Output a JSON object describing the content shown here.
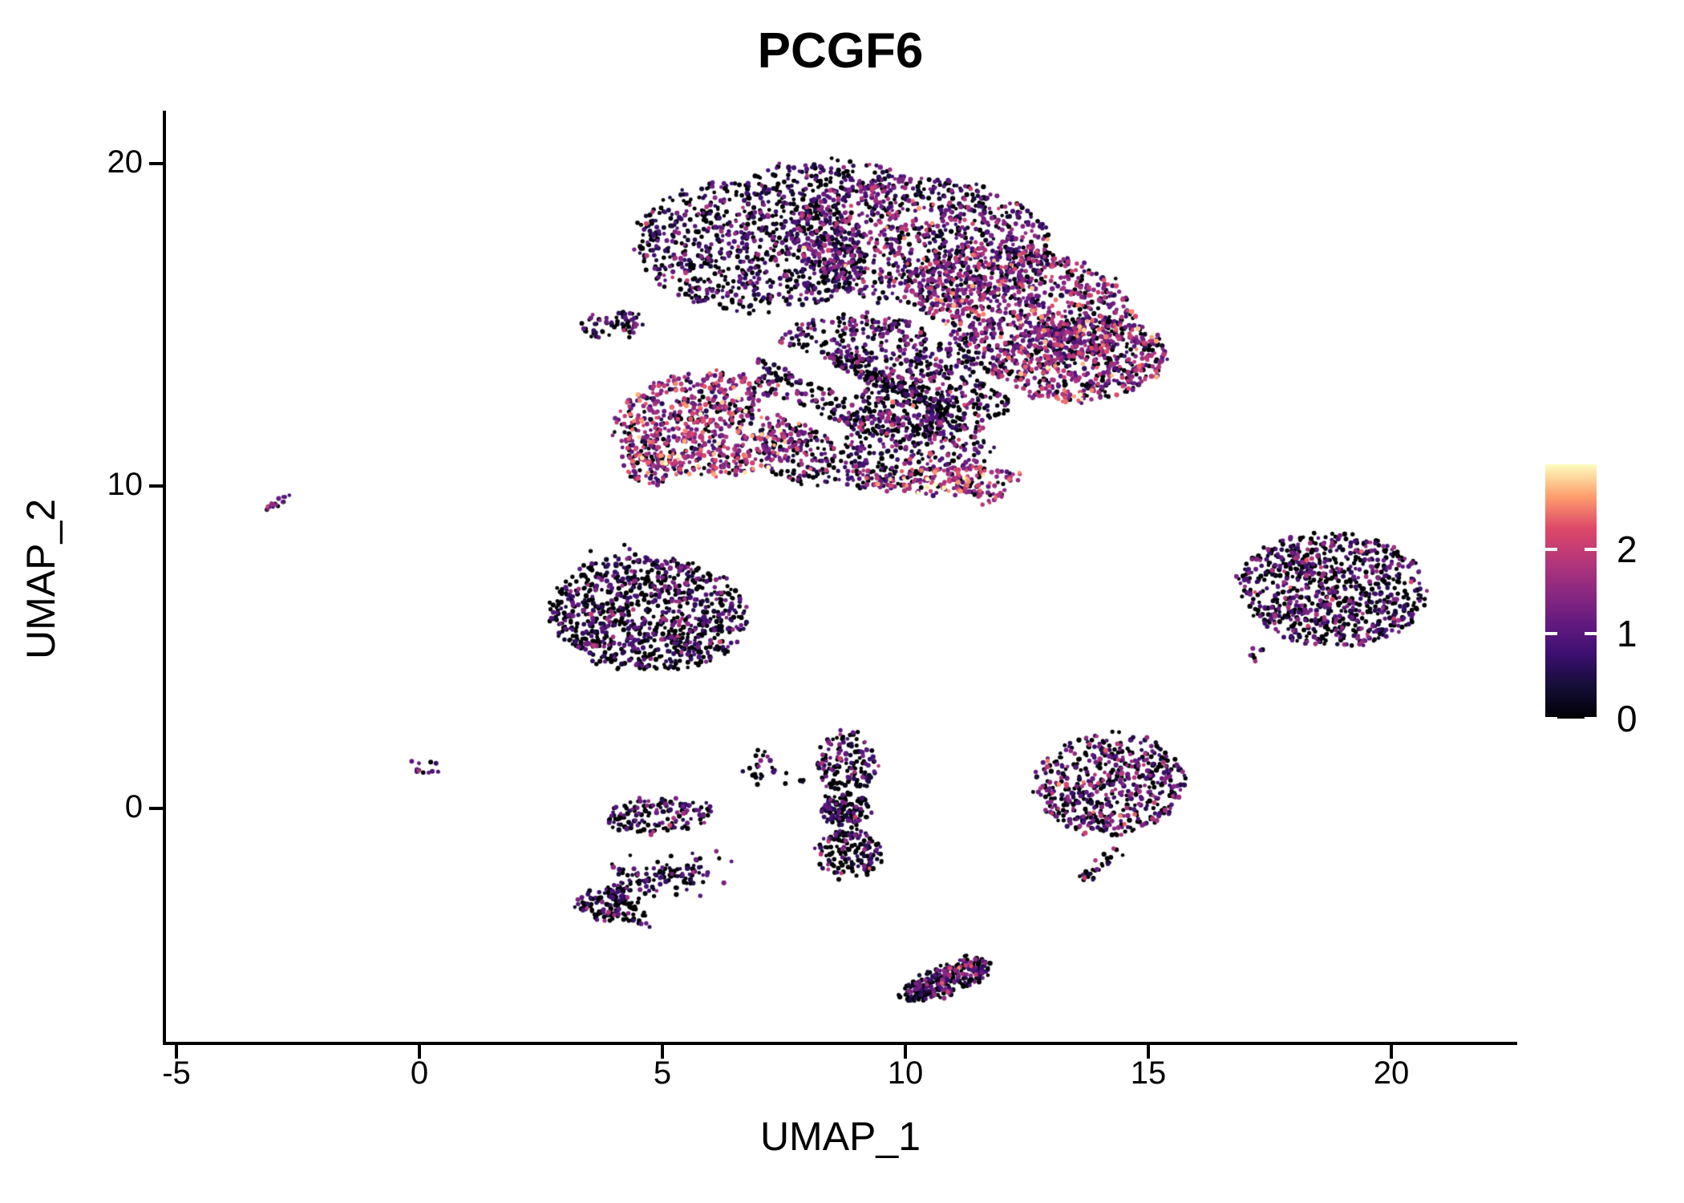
{
  "title": "PCGF6",
  "chart_data": {
    "type": "scatter",
    "title": "PCGF6",
    "xlabel": "UMAP_1",
    "ylabel": "UMAP_2",
    "x_ticks": [
      -5,
      0,
      5,
      10,
      15,
      20
    ],
    "y_ticks": [
      0,
      10,
      20
    ],
    "xlim": [
      -5.3,
      22.6
    ],
    "ylim": [
      -7.3,
      21.7
    ],
    "grid": false,
    "background": "#ffffff",
    "axis_color": "#000000",
    "point_radius_px": [
      2.25,
      3.2
    ],
    "seed": 42,
    "colorbar": {
      "position": "right",
      "ticks": [
        0,
        1,
        2
      ],
      "vmin": 0,
      "vmax": 3.0,
      "colormap": "magma",
      "stops": [
        {
          "t": 0.0,
          "c": "#000004"
        },
        {
          "t": 0.125,
          "c": "#140e36"
        },
        {
          "t": 0.25,
          "c": "#3b0f70"
        },
        {
          "t": 0.375,
          "c": "#641a80"
        },
        {
          "t": 0.5,
          "c": "#8c2981"
        },
        {
          "t": 0.625,
          "c": "#b73779"
        },
        {
          "t": 0.75,
          "c": "#de4968"
        },
        {
          "t": 0.875,
          "c": "#fe9f6d"
        },
        {
          "t": 1.0,
          "c": "#fcfdbf"
        }
      ]
    },
    "main_region_clip": {
      "xmax": 15.45,
      "ymin": 9.4,
      "ymax": 20.25
    },
    "holes": [
      {
        "x1": 6.2,
        "y1": 14.9,
        "x2": 8.9,
        "y2": 13.1,
        "r": 0.32
      },
      {
        "x1": 7.2,
        "y1": 12.6,
        "x2": 8.7,
        "y2": 11.7,
        "r": 0.22
      },
      {
        "x1": 9.9,
        "y1": 15.5,
        "x2": 10.8,
        "y2": 14.8,
        "r": 0.17
      },
      {
        "x1": 11.6,
        "y1": 13.4,
        "x2": 12.3,
        "y2": 12.9,
        "r": 0.14
      }
    ],
    "clusters": [
      {
        "name": "main-left-top",
        "shape": "ellipse",
        "n": 850,
        "cx": 6.8,
        "cy": 17.4,
        "rx": 2.4,
        "ry": 2.0,
        "rot": -15,
        "p_zero": 0.45,
        "mu": 0.75,
        "sigma": 0.5,
        "region": "main"
      },
      {
        "name": "main-top-neck",
        "shape": "ellipse",
        "n": 130,
        "cx": 8.4,
        "cy": 19.55,
        "rx": 1.5,
        "ry": 0.55,
        "rot": 0,
        "p_zero": 0.45,
        "mu": 0.9,
        "sigma": 0.5,
        "region": "main"
      },
      {
        "name": "main-top-mid",
        "shape": "ellipse",
        "n": 1000,
        "cx": 10.3,
        "cy": 17.6,
        "rx": 2.7,
        "ry": 2.0,
        "rot": -10,
        "p_zero": 0.3,
        "mu": 1.1,
        "sigma": 0.55,
        "region": "main"
      },
      {
        "name": "main-right-top",
        "shape": "ellipse",
        "n": 850,
        "cx": 12.4,
        "cy": 15.7,
        "rx": 2.4,
        "ry": 1.7,
        "rot": -20,
        "p_zero": 0.22,
        "mu": 1.3,
        "sigma": 0.6,
        "region": "main"
      },
      {
        "name": "main-right-lobe",
        "shape": "ellipse",
        "n": 650,
        "cx": 13.6,
        "cy": 13.9,
        "rx": 1.85,
        "ry": 1.25,
        "rot": 10,
        "p_zero": 0.2,
        "mu": 1.35,
        "sigma": 0.6,
        "region": "main"
      },
      {
        "name": "main-mid-body",
        "shape": "ellipse",
        "n": 780,
        "cx": 9.6,
        "cy": 13.4,
        "rx": 2.7,
        "ry": 1.8,
        "rot": -15,
        "p_zero": 0.42,
        "mu": 1.0,
        "sigma": 0.55,
        "region": "main"
      },
      {
        "name": "main-left-warm",
        "shape": "ellipse",
        "n": 720,
        "cx": 6.0,
        "cy": 11.9,
        "rx": 2.0,
        "ry": 1.6,
        "rot": 0,
        "p_zero": 0.17,
        "mu": 1.55,
        "sigma": 0.65,
        "region": "main"
      },
      {
        "name": "main-bottom-mid",
        "shape": "ellipse",
        "n": 480,
        "cx": 9.4,
        "cy": 11.1,
        "rx": 2.4,
        "ry": 1.15,
        "rot": 5,
        "p_zero": 0.45,
        "mu": 1.05,
        "sigma": 0.6,
        "region": "main"
      },
      {
        "name": "main-bottom-warm",
        "shape": "ellipse",
        "n": 150,
        "cx": 10.9,
        "cy": 10.2,
        "rx": 1.5,
        "ry": 0.42,
        "rot": 5,
        "p_zero": 0.15,
        "mu": 1.8,
        "sigma": 0.6,
        "region": "main"
      },
      {
        "name": "main-bottom-warm-b",
        "shape": "segment",
        "n": 45,
        "x1": 11.1,
        "y1": 10.05,
        "x2": 11.95,
        "y2": 9.55,
        "jitter": 0.15,
        "p_zero": 0.25,
        "mu": 1.6,
        "sigma": 0.6,
        "region": "main"
      },
      {
        "name": "main-left-spike",
        "shape": "ellipse",
        "n": 70,
        "cx": 4.0,
        "cy": 15.0,
        "rx": 0.7,
        "ry": 0.38,
        "rot": 8,
        "p_zero": 0.5,
        "mu": 0.7,
        "sigma": 0.4,
        "region": "main"
      },
      {
        "name": "main-left-tail",
        "shape": "ellipse",
        "n": 90,
        "cx": 4.8,
        "cy": 10.7,
        "rx": 0.6,
        "ry": 0.65,
        "rot": 0,
        "p_zero": 0.22,
        "mu": 1.5,
        "sigma": 0.6,
        "region": "main"
      },
      {
        "name": "main-dark-streak",
        "shape": "segment",
        "n": 140,
        "x1": 8.6,
        "y1": 14.0,
        "x2": 11.1,
        "y2": 12.1,
        "jitter": 0.13,
        "p_zero": 0.78,
        "mu": 0.5,
        "sigma": 0.3,
        "region": "main"
      },
      {
        "name": "left-streak",
        "shape": "segment",
        "n": 16,
        "x1": -3.33,
        "y1": 9.05,
        "x2": -2.55,
        "y2": 9.85,
        "jitter": 0.07,
        "p_zero": 0.3,
        "mu": 1.3,
        "sigma": 0.6
      },
      {
        "name": "mid-left-cluster",
        "shape": "ellipse",
        "n": 950,
        "cx": 4.7,
        "cy": 6.05,
        "rx": 2.05,
        "ry": 1.75,
        "rot": -12,
        "p_zero": 0.55,
        "mu": 0.8,
        "sigma": 0.5
      },
      {
        "name": "mid-left-strays",
        "shape": "segment",
        "n": 6,
        "x1": 3.5,
        "y1": 7.95,
        "x2": 4.9,
        "y2": 7.85,
        "jitter": 0.15,
        "p_zero": 0.5,
        "mu": 1.0,
        "sigma": 0.5
      },
      {
        "name": "right-cluster",
        "shape": "ellipse",
        "n": 850,
        "cx": 18.8,
        "cy": 6.8,
        "rx": 1.95,
        "ry": 1.75,
        "rot": -18,
        "p_zero": 0.5,
        "mu": 0.95,
        "sigma": 0.5
      },
      {
        "name": "right-cluster-tail",
        "shape": "segment",
        "n": 7,
        "x1": 16.95,
        "y1": 4.6,
        "x2": 17.55,
        "y2": 5.1,
        "jitter": 0.1,
        "p_zero": 0.4,
        "mu": 1.0,
        "sigma": 0.5
      },
      {
        "name": "tiny-zero-cluster",
        "shape": "ellipse",
        "n": 14,
        "cx": 0.08,
        "cy": 1.28,
        "rx": 0.38,
        "ry": 0.24,
        "rot": 15,
        "p_zero": 0.3,
        "mu": 1.3,
        "sigma": 0.6
      },
      {
        "name": "z-top-bar",
        "shape": "ellipse",
        "n": 150,
        "cx": 4.95,
        "cy": -0.2,
        "rx": 1.1,
        "ry": 0.55,
        "rot": 5,
        "p_zero": 0.6,
        "mu": 0.85,
        "sigma": 0.45
      },
      {
        "name": "z-mid-diagonal",
        "shape": "segment",
        "n": 130,
        "x1": 4.0,
        "y1": -2.5,
        "x2": 5.9,
        "y2": -1.85,
        "jitter": 0.28,
        "p_zero": 0.62,
        "mu": 0.8,
        "sigma": 0.45
      },
      {
        "name": "z-bottom-hook",
        "shape": "ellipse",
        "n": 110,
        "cx": 3.85,
        "cy": -3.0,
        "rx": 0.6,
        "ry": 0.5,
        "rot": -20,
        "p_zero": 0.6,
        "mu": 0.85,
        "sigma": 0.45
      },
      {
        "name": "z-bottom-tail",
        "shape": "segment",
        "n": 18,
        "x1": 4.1,
        "y1": -3.2,
        "x2": 4.75,
        "y2": -3.5,
        "jitter": 0.12,
        "p_zero": 0.6,
        "mu": 0.8,
        "sigma": 0.4
      },
      {
        "name": "tiny-seven-cluster",
        "shape": "ellipse",
        "n": 26,
        "cx": 7.0,
        "cy": 1.3,
        "rx": 0.32,
        "ry": 0.55,
        "rot": 0,
        "p_zero": 0.55,
        "mu": 0.9,
        "sigma": 0.5
      },
      {
        "name": "tiny-seven-strays",
        "shape": "segment",
        "n": 6,
        "x1": 7.4,
        "y1": 1.15,
        "x2": 7.95,
        "y2": 0.8,
        "jitter": 0.12,
        "p_zero": 0.85,
        "mu": 0.3,
        "sigma": 0.3
      },
      {
        "name": "vertical-top",
        "shape": "ellipse",
        "n": 150,
        "cx": 8.8,
        "cy": 1.45,
        "rx": 0.58,
        "ry": 1.0,
        "rot": 0,
        "p_zero": 0.52,
        "mu": 0.95,
        "sigma": 0.5
      },
      {
        "name": "vertical-mid",
        "shape": "ellipse",
        "n": 130,
        "cx": 8.75,
        "cy": 0.0,
        "rx": 0.5,
        "ry": 0.55,
        "rot": 0,
        "p_zero": 0.58,
        "mu": 0.9,
        "sigma": 0.5
      },
      {
        "name": "vertical-bottom",
        "shape": "ellipse",
        "n": 160,
        "cx": 8.85,
        "cy": -1.4,
        "rx": 0.68,
        "ry": 0.78,
        "rot": 0,
        "p_zero": 0.55,
        "mu": 0.9,
        "sigma": 0.5
      },
      {
        "name": "right-mid-cluster",
        "shape": "ellipse",
        "n": 560,
        "cx": 14.2,
        "cy": 0.75,
        "rx": 1.55,
        "ry": 1.6,
        "rot": -5,
        "p_zero": 0.42,
        "mu": 1.05,
        "sigma": 0.55
      },
      {
        "name": "right-mid-tail-a",
        "shape": "segment",
        "n": 14,
        "x1": 14.35,
        "y1": -1.2,
        "x2": 13.95,
        "y2": -1.9,
        "jitter": 0.1,
        "p_zero": 0.5,
        "mu": 0.9,
        "sigma": 0.5
      },
      {
        "name": "right-mid-tail-b",
        "shape": "segment",
        "n": 14,
        "x1": 13.95,
        "y1": -2.0,
        "x2": 13.6,
        "y2": -2.2,
        "jitter": 0.08,
        "p_zero": 0.5,
        "mu": 0.9,
        "sigma": 0.5
      },
      {
        "name": "bottom-cluster",
        "shape": "ellipse",
        "n": 240,
        "cx": 10.9,
        "cy": -5.25,
        "rx": 0.95,
        "ry": 0.45,
        "rot": 30,
        "p_zero": 0.48,
        "mu": 1.05,
        "sigma": 0.5
      },
      {
        "name": "bottom-cluster-tip",
        "shape": "ellipse",
        "n": 40,
        "cx": 10.2,
        "cy": -5.75,
        "rx": 0.38,
        "ry": 0.26,
        "rot": 30,
        "p_zero": 0.75,
        "mu": 0.4,
        "sigma": 0.3
      }
    ]
  }
}
